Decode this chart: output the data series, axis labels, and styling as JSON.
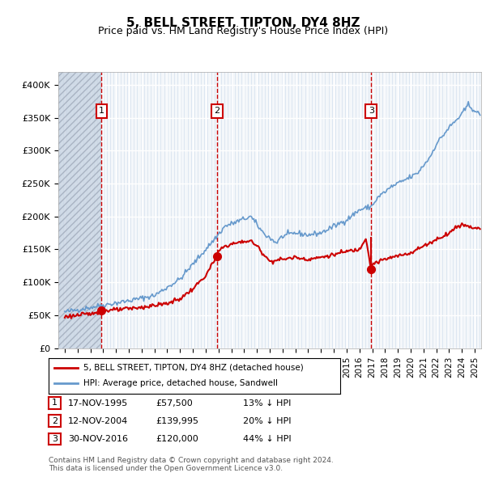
{
  "title": "5, BELL STREET, TIPTON, DY4 8HZ",
  "subtitle": "Price paid vs. HM Land Registry's House Price Index (HPI)",
  "legend_label_red": "5, BELL STREET, TIPTON, DY4 8HZ (detached house)",
  "legend_label_blue": "HPI: Average price, detached house, Sandwell",
  "footer": "Contains HM Land Registry data © Crown copyright and database right 2024.\nThis data is licensed under the Open Government Licence v3.0.",
  "transactions": [
    {
      "num": 1,
      "date": "17-NOV-1995",
      "price": 57500,
      "pct": "13%",
      "dir": "↓",
      "year_x": 1995.88
    },
    {
      "num": 2,
      "date": "12-NOV-2004",
      "price": 139995,
      "pct": "20%",
      "dir": "↓",
      "year_x": 2004.88
    },
    {
      "num": 3,
      "date": "30-NOV-2016",
      "price": 120000,
      "pct": "44%",
      "dir": "↓",
      "year_x": 2016.92
    }
  ],
  "ylim": [
    0,
    420000
  ],
  "yticks": [
    0,
    50000,
    100000,
    150000,
    200000,
    250000,
    300000,
    350000,
    400000
  ],
  "xlim_start": 1992.5,
  "xlim_end": 2025.5,
  "hatch_end": 1995.88,
  "background_color": "#dce6f1",
  "plot_bg": "#dce6f1",
  "grid_color": "#ffffff",
  "red_color": "#cc0000",
  "blue_color": "#6699cc",
  "vline_color": "#cc0000",
  "hatch_color": "#b0b8c8"
}
